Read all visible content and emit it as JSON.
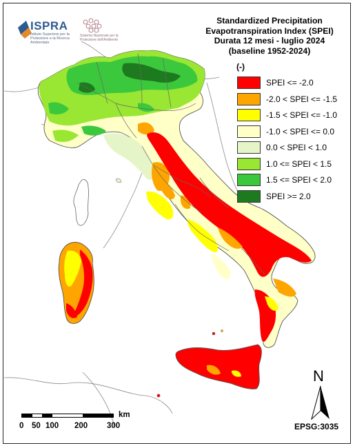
{
  "map": {
    "title_lines": [
      "Standardized Precipitation",
      "Evapotranspiration  Index (SPEI)",
      "Durata 12 mesi - luglio 2024",
      "(baseline 1952-2024)"
    ],
    "unit": "(-)",
    "legend": [
      {
        "label": "SPEI <= -2.0",
        "color": "#ff0000"
      },
      {
        "label": "-2.0 < SPEI <= -1.5",
        "color": "#ffa500"
      },
      {
        "label": "-1.5 < SPEI <= -1.0",
        "color": "#ffff00"
      },
      {
        "label": "-1.0 < SPEI <= 0.0",
        "color": "#ffffc8"
      },
      {
        "label": "0.0 < SPEI < 1.0",
        "color": "#e6f5c8"
      },
      {
        "label": "1.0 <= SPEI < 1.5",
        "color": "#99e633"
      },
      {
        "label": "1.5 <= SPEI < 2.0",
        "color": "#3cc83c"
      },
      {
        "label": "SPEI >= 2.0",
        "color": "#1e7a1e"
      }
    ],
    "scale": {
      "ticks": [
        "0",
        "50",
        "100",
        "200",
        "300"
      ],
      "unit": "km"
    },
    "north_label": "N",
    "projection": "EPSG:3035"
  },
  "logos": {
    "ispra_name": "ISPRA",
    "ispra_subtitle": "Istituto Superiore per la Protezione e la Ricerca Ambientale",
    "snpa_subtitle": "Sistema Nazionale per la Protezione dell'Ambiente"
  }
}
